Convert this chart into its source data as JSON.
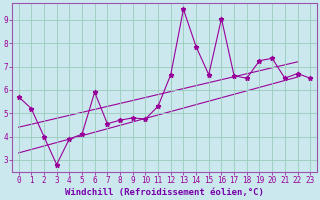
{
  "bg_color": "#cce8ef",
  "grid_color": "#99ccbb",
  "line_color": "#990099",
  "border_color": "#9955aa",
  "xlabel": "Windchill (Refroidissement éolien,°C)",
  "xlabel_color": "#7700aa",
  "xlim": [
    -0.5,
    23.5
  ],
  "ylim": [
    2.5,
    9.7
  ],
  "yticks": [
    3,
    4,
    5,
    6,
    7,
    8,
    9
  ],
  "xticks": [
    0,
    1,
    2,
    3,
    4,
    5,
    6,
    7,
    8,
    9,
    10,
    11,
    12,
    13,
    14,
    15,
    16,
    17,
    18,
    19,
    20,
    21,
    22,
    23
  ],
  "series1_x": [
    0,
    1,
    2,
    3,
    4,
    5,
    6,
    7,
    8,
    9,
    10,
    11,
    12,
    13,
    14,
    15,
    16,
    17,
    18,
    19,
    20,
    21,
    22
  ],
  "series1_y": [
    5.7,
    5.2,
    4.0,
    2.8,
    3.9,
    4.1,
    5.9,
    4.55,
    4.7,
    4.8,
    4.75,
    5.3,
    6.65,
    9.45,
    7.85,
    6.65,
    9.05,
    6.6,
    6.5,
    7.25,
    7.35,
    6.5,
    6.7
  ],
  "series2_x": [
    0,
    22
  ],
  "series2_y": [
    3.3,
    6.55
  ],
  "series3_x": [
    0,
    22
  ],
  "series3_y": [
    4.4,
    7.2
  ],
  "last_point_x": 23,
  "last_point_y": 6.5,
  "marker": "*",
  "markersize": 3.5,
  "linewidth": 0.8,
  "tick_fontsize": 5.5,
  "xlabel_fontsize": 6.5,
  "xlabel_fontweight": "bold"
}
